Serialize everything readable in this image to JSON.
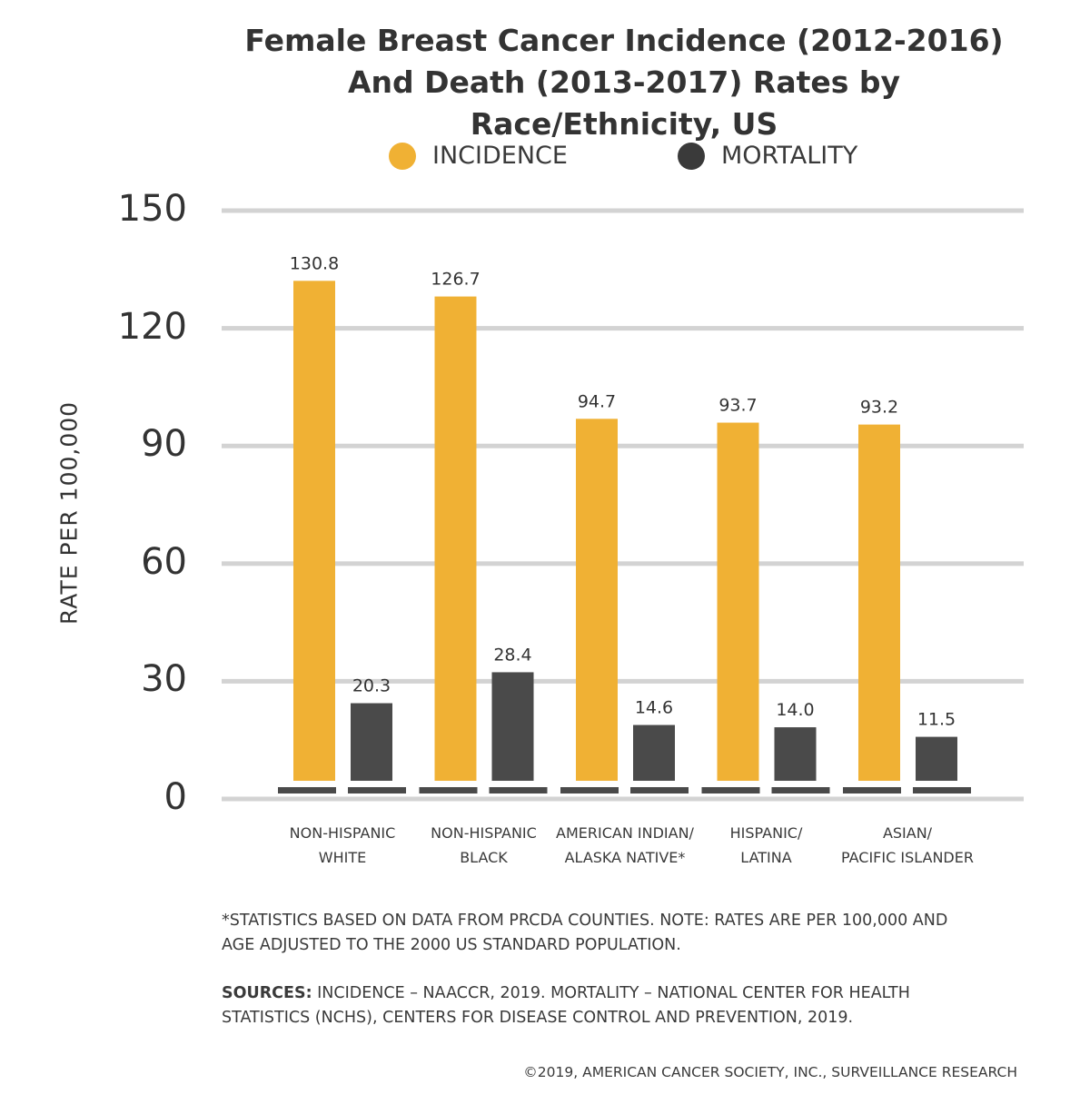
{
  "chart_data": {
    "type": "bar",
    "title": [
      "Female Breast Cancer Incidence (2012-2016)",
      "And Death (2013-2017) Rates by Race/Ethnicity, US"
    ],
    "ylabel": "RATE PER 100,000",
    "ylim": [
      0,
      150
    ],
    "yticks": [
      "0",
      "30",
      "60",
      "90",
      "120",
      "150"
    ],
    "grid": true,
    "legend_position": "top",
    "categories": [
      [
        "NON-HISPANIC",
        "WHITE"
      ],
      [
        "NON-HISPANIC",
        "BLACK"
      ],
      [
        "AMERICAN INDIAN/",
        "ALASKA NATIVE*"
      ],
      [
        "HISPANIC/",
        "LATINA"
      ],
      [
        "ASIAN/",
        "PACIFIC ISLANDER"
      ]
    ],
    "series": [
      {
        "name": "INCIDENCE",
        "color": "#f0b134",
        "values": [
          130.8,
          126.7,
          94.7,
          93.7,
          93.2
        ],
        "labels": [
          "130.8",
          "126.7",
          "94.7",
          "93.7",
          "93.2"
        ]
      },
      {
        "name": "MORTALITY",
        "color": "#4a4a4a",
        "values": [
          20.3,
          28.4,
          14.6,
          14.0,
          11.5
        ],
        "labels": [
          "20.3",
          "28.4",
          "14.6",
          "14.0",
          "11.5"
        ]
      }
    ]
  },
  "footnote": [
    "*STATISTICS BASED ON DATA FROM PRCDA COUNTIES. NOTE: RATES ARE PER 100,000 AND",
    "AGE ADJUSTED TO THE 2000 US STANDARD POPULATION."
  ],
  "sources": {
    "label": "SOURCES:",
    "line1": " INCIDENCE – NAACCR, 2019. MORTALITY – NATIONAL CENTER FOR HEALTH",
    "line2": "STATISTICS (NCHS), CENTERS FOR DISEASE CONTROL AND PREVENTION, 2019."
  },
  "copyright": "©2019, AMERICAN CANCER SOCIETY, INC., SURVEILLANCE RESEARCH",
  "colors": {
    "grid": "#d3d3d3",
    "base": "#4a4a4a"
  }
}
